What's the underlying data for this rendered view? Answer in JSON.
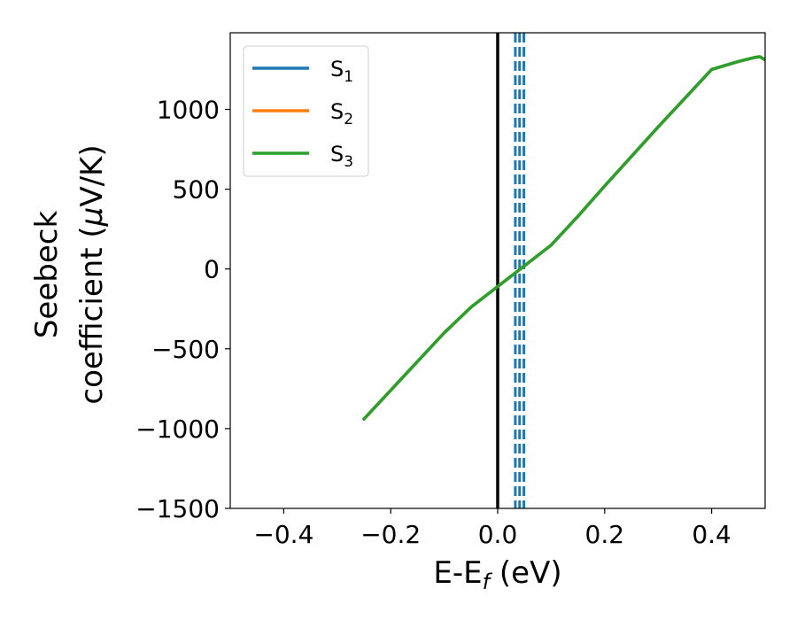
{
  "chart_data": {
    "type": "line",
    "xlabel_main": "E-E",
    "xlabel_sub": "f",
    "xlabel_unit": " (eV)",
    "ylabel_line1": "Seebeck",
    "ylabel_line2_pre": "coefficient  (",
    "ylabel_mu": "μ",
    "ylabel_line2_post": "V/K)",
    "xlim": [
      -0.5,
      0.5
    ],
    "ylim": [
      -1500,
      1480
    ],
    "xticks": [
      -0.4,
      -0.2,
      0.0,
      0.2,
      0.4
    ],
    "xtick_labels": [
      "−0.4",
      "−0.2",
      "0.0",
      "0.2",
      "0.4"
    ],
    "yticks": [
      -1500,
      -1000,
      -500,
      0,
      500,
      1000
    ],
    "ytick_labels": [
      "−1500",
      "−1000",
      "−500",
      "0",
      "500",
      "1000"
    ],
    "legend_position": "top-left",
    "series": [
      {
        "name": "S",
        "sub": "1",
        "color": "#1f77b4",
        "x": [
          -0.25,
          -0.2,
          -0.15,
          -0.1,
          -0.05,
          0.0,
          0.05,
          0.1,
          0.15,
          0.2,
          0.25,
          0.3,
          0.35,
          0.4,
          0.45,
          0.48,
          0.49,
          0.5
        ],
        "y": [
          -940,
          -760,
          -580,
          -400,
          -240,
          -110,
          20,
          150,
          330,
          520,
          705,
          890,
          1070,
          1250,
          1300,
          1325,
          1330,
          1310
        ]
      },
      {
        "name": "S",
        "sub": "2",
        "color": "#ff7f0e",
        "x": [
          -0.25,
          -0.2,
          -0.15,
          -0.1,
          -0.05,
          0.0,
          0.05,
          0.1,
          0.15,
          0.2,
          0.25,
          0.3,
          0.35,
          0.4,
          0.45,
          0.48,
          0.49,
          0.5
        ],
        "y": [
          -940,
          -760,
          -580,
          -400,
          -240,
          -110,
          20,
          150,
          330,
          520,
          705,
          890,
          1070,
          1250,
          1300,
          1325,
          1330,
          1310
        ]
      },
      {
        "name": "S",
        "sub": "3",
        "color": "#2ca02c",
        "x": [
          -0.25,
          -0.2,
          -0.15,
          -0.1,
          -0.05,
          0.0,
          0.05,
          0.1,
          0.15,
          0.2,
          0.25,
          0.3,
          0.35,
          0.4,
          0.45,
          0.48,
          0.49,
          0.5
        ],
        "y": [
          -940,
          -760,
          -580,
          -400,
          -240,
          -110,
          20,
          150,
          330,
          520,
          705,
          890,
          1070,
          1250,
          1300,
          1325,
          1330,
          1310
        ]
      }
    ],
    "vertical_lines": [
      {
        "x": 0.0,
        "color": "#000000",
        "style": "solid"
      },
      {
        "x": 0.033,
        "color": "#1f77b4",
        "style": "dashed"
      },
      {
        "x": 0.041,
        "color": "#1f77b4",
        "style": "dashed"
      },
      {
        "x": 0.049,
        "color": "#1f77b4",
        "style": "dashed"
      }
    ]
  }
}
